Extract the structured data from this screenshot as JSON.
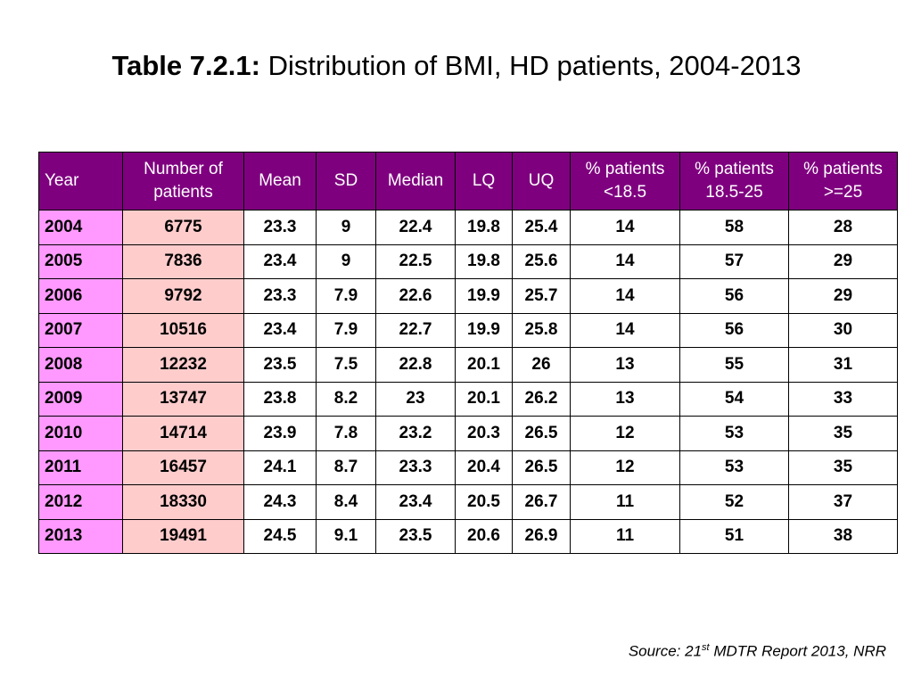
{
  "title": {
    "label": "Table 7.2.1:",
    "text": "Distribution of BMI, HD patients, 2004-2013"
  },
  "table": {
    "headers": [
      "Year",
      "Number of patients",
      "Mean",
      "SD",
      "Median",
      "LQ",
      "UQ",
      "% patients <18.5",
      "% patients 18.5-25",
      "% patients >=25"
    ],
    "rows": [
      [
        "2004",
        "6775",
        "23.3",
        "9",
        "22.4",
        "19.8",
        "25.4",
        "14",
        "58",
        "28"
      ],
      [
        "2005",
        "7836",
        "23.4",
        "9",
        "22.5",
        "19.8",
        "25.6",
        "14",
        "57",
        "29"
      ],
      [
        "2006",
        "9792",
        "23.3",
        "7.9",
        "22.6",
        "19.9",
        "25.7",
        "14",
        "56",
        "29"
      ],
      [
        "2007",
        "10516",
        "23.4",
        "7.9",
        "22.7",
        "19.9",
        "25.8",
        "14",
        "56",
        "30"
      ],
      [
        "2008",
        "12232",
        "23.5",
        "7.5",
        "22.8",
        "20.1",
        "26",
        "13",
        "55",
        "31"
      ],
      [
        "2009",
        "13747",
        "23.8",
        "8.2",
        "23",
        "20.1",
        "26.2",
        "13",
        "54",
        "33"
      ],
      [
        "2010",
        "14714",
        "23.9",
        "7.8",
        "23.2",
        "20.3",
        "26.5",
        "12",
        "53",
        "35"
      ],
      [
        "2011",
        "16457",
        "24.1",
        "8.7",
        "23.3",
        "20.4",
        "26.5",
        "12",
        "53",
        "35"
      ],
      [
        "2012",
        "18330",
        "24.3",
        "8.4",
        "23.4",
        "20.5",
        "26.7",
        "11",
        "52",
        "37"
      ],
      [
        "2013",
        "19491",
        "24.5",
        "9.1",
        "23.5",
        "20.6",
        "26.9",
        "11",
        "51",
        "38"
      ]
    ]
  },
  "source": {
    "prefix": "Source: 21",
    "sup": "st",
    "suffix": " MDTR Report 2013, NRR"
  },
  "colors": {
    "header_bg": "#7f007f",
    "year_col_bg": "#ff99ff",
    "count_col_bg": "#ffcccc"
  }
}
